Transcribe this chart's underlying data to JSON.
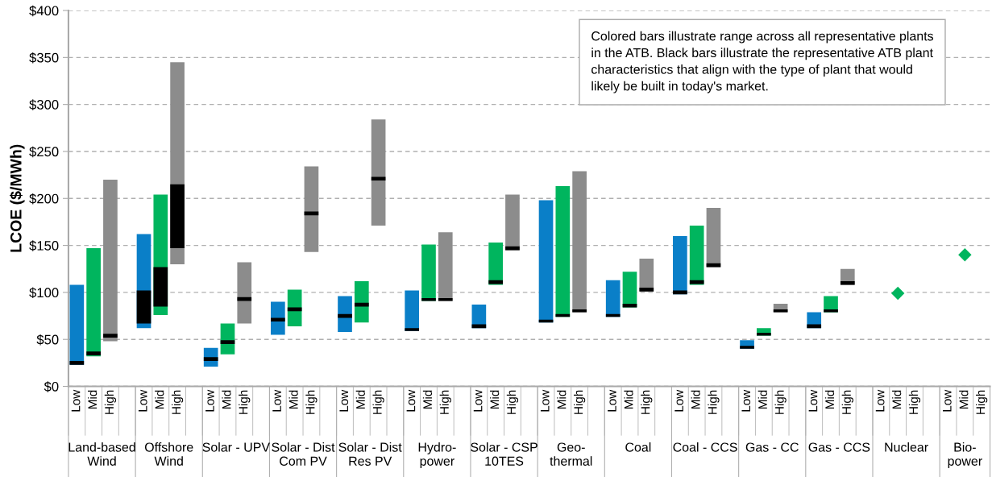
{
  "chart_data": {
    "type": "bar",
    "ylabel": "LCOE ($/MWh)",
    "categories": [
      "Low",
      "Mid",
      "High",
      null,
      "Low",
      "Mid",
      "High",
      null,
      "Low",
      "Mid",
      "High",
      null,
      "Low",
      "Mid",
      "High",
      null,
      "Low",
      "Mid",
      "High",
      null,
      "Low",
      "Mid",
      "High",
      null,
      "Low",
      "Mid",
      "High",
      null,
      "Low",
      "Mid",
      "High",
      null,
      "Low",
      "Mid",
      "High",
      null,
      "Low",
      "Mid",
      "High",
      null,
      "Low",
      "Mid",
      "High",
      null,
      "Low",
      "Mid",
      "High",
      null,
      "Low",
      "Mid",
      "High",
      null,
      "Low",
      "Mid",
      "High"
    ],
    "series": [
      {
        "base": [
          23,
          32,
          48,
          null,
          62,
          76,
          130,
          null,
          21,
          34,
          67,
          null,
          55,
          64,
          143,
          null,
          58,
          68,
          171,
          null,
          59,
          91,
          91,
          null,
          62,
          108,
          145,
          null,
          68,
          74,
          79,
          null,
          74,
          84,
          101,
          null,
          98,
          108,
          127,
          null,
          40,
          54,
          79,
          null,
          62,
          79,
          108,
          null,
          null,
          null,
          null,
          null,
          null,
          null,
          null
        ],
        "values": [
          85,
          115,
          172,
          null,
          100,
          128,
          215,
          null,
          20,
          33,
          65,
          null,
          35,
          39,
          91,
          null,
          38,
          44,
          113,
          null,
          43,
          60,
          73,
          null,
          25,
          45,
          59,
          null,
          130,
          139,
          150,
          null,
          39,
          38,
          35,
          null,
          62,
          63,
          63,
          null,
          9,
          8,
          9,
          null,
          17,
          17,
          17,
          null,
          null,
          null,
          null,
          null,
          null,
          null,
          null
        ],
        "colors": [
          "#0a7fc8",
          "#00b55e",
          "#8c8c8c",
          null,
          "#0a7fc8",
          "#00b55e",
          "#8c8c8c",
          null,
          "#0a7fc8",
          "#00b55e",
          "#8c8c8c",
          null,
          "#0a7fc8",
          "#00b55e",
          "#8c8c8c",
          null,
          "#0a7fc8",
          "#00b55e",
          "#8c8c8c",
          null,
          "#0a7fc8",
          "#00b55e",
          "#8c8c8c",
          null,
          "#0a7fc8",
          "#00b55e",
          "#8c8c8c",
          null,
          "#0a7fc8",
          "#00b55e",
          "#8c8c8c",
          null,
          "#0a7fc8",
          "#00b55e",
          "#8c8c8c",
          null,
          "#0a7fc8",
          "#00b55e",
          "#8c8c8c",
          null,
          "#0a7fc8",
          "#00b55e",
          "#8c8c8c",
          null,
          "#0a7fc8",
          "#00b55e",
          "#8c8c8c",
          null,
          "#0a7fc8",
          "#00b55e",
          "#8c8c8c",
          null,
          "#0a7fc8",
          "#00b55e",
          "#8c8c8c"
        ]
      },
      {
        "color": "#000000",
        "base": [
          23,
          33,
          52,
          null,
          67,
          85,
          147,
          null,
          27,
          45,
          91,
          null,
          69,
          80,
          182,
          null,
          73,
          85,
          219,
          null,
          59,
          91,
          91,
          null,
          62,
          109,
          145,
          null,
          68,
          74,
          79,
          null,
          74,
          84,
          101,
          null,
          98,
          109,
          127,
          null,
          40,
          54,
          79,
          null,
          62,
          79,
          108,
          null,
          null,
          null,
          null,
          null,
          null,
          null,
          null
        ],
        "values": [
          4,
          4,
          4,
          null,
          35,
          42,
          68,
          null,
          4,
          4,
          4,
          null,
          4,
          4,
          4,
          null,
          4,
          4,
          4,
          null,
          3,
          3,
          3,
          null,
          4,
          4,
          4,
          null,
          3,
          3,
          3,
          null,
          3,
          4,
          4,
          null,
          4,
          4,
          4,
          null,
          3,
          3,
          3,
          null,
          4,
          3,
          4,
          null,
          null,
          null,
          null,
          null,
          null,
          null,
          null
        ]
      },
      {
        "type": "scatter",
        "color": "#00b55e",
        "marker": "diamond",
        "values": [
          null,
          null,
          null,
          null,
          null,
          null,
          null,
          null,
          null,
          null,
          null,
          null,
          null,
          null,
          null,
          null,
          null,
          null,
          null,
          null,
          null,
          null,
          null,
          null,
          null,
          null,
          null,
          null,
          null,
          null,
          null,
          null,
          null,
          null,
          null,
          null,
          null,
          null,
          null,
          null,
          null,
          null,
          null,
          null,
          null,
          null,
          null,
          null,
          null,
          99,
          null,
          null,
          null,
          140,
          null
        ]
      }
    ],
    "ylim": [
      0,
      400
    ],
    "yticks": [
      {
        "value": 0,
        "label": "$0"
      },
      {
        "value": 50,
        "label": "$50"
      },
      {
        "value": 100,
        "label": "$100"
      },
      {
        "value": 150,
        "label": "$150"
      },
      {
        "value": 200,
        "label": "$200"
      },
      {
        "value": 250,
        "label": "$250"
      },
      {
        "value": 300,
        "label": "$300"
      },
      {
        "value": 350,
        "label": "$350"
      },
      {
        "value": 400,
        "label": "$400"
      }
    ],
    "grid": "y",
    "annotations": [
      "Land-based\nWind",
      "Offshore\nWind",
      "Solar - UPV",
      "Solar - Dist\nCom PV",
      "Solar - Dist\nRes PV",
      "Hydro-\npower",
      "Solar - CSP\n10TES",
      "Geo-\nthermal",
      "Coal",
      "Coal - CCS",
      "Gas - CC",
      "Gas - CCS",
      "Nuclear",
      "Bio-\npower",
      "Colored bars illustrate range across all representative plants\nin the ATB. Black bars illustrate the representative ATB plant\ncharacteristics that align with the type of plant that would\nlikely be built in today's market."
    ]
  }
}
